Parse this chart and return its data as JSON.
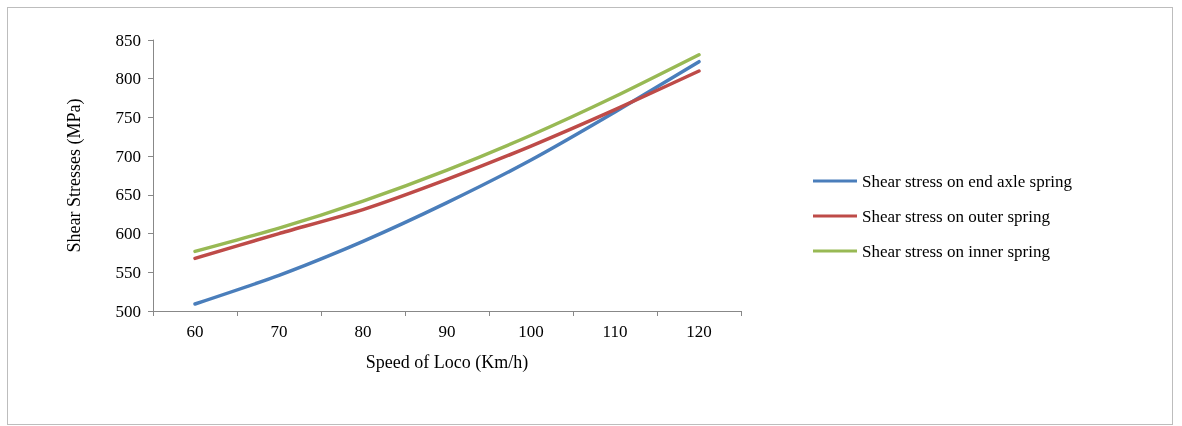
{
  "chart_data": {
    "type": "line",
    "xlabel": "Speed of Loco (Km/h)",
    "ylabel": "Shear Stresses (MPa)",
    "categories": [
      "60",
      "70",
      "80",
      "90",
      "100",
      "110",
      "120"
    ],
    "series": [
      {
        "name": "Shear stress on end axle spring",
        "color": "#4a7ebb",
        "values": [
          509,
          546,
          590,
          640,
          695,
          757,
          822
        ]
      },
      {
        "name": "Shear stress on outer spring",
        "color": "#be4b48",
        "values": [
          568,
          600,
          631,
          670,
          713,
          760,
          810
        ]
      },
      {
        "name": "Shear stress on inner spring",
        "color": "#98b954",
        "values": [
          577,
          607,
          642,
          682,
          727,
          777,
          831
        ]
      }
    ],
    "ylim": [
      500,
      850
    ],
    "yticks": [
      500,
      550,
      600,
      650,
      700,
      750,
      800,
      850
    ],
    "grid": false,
    "legend": "right",
    "marker": "none",
    "line_style": "solid"
  }
}
